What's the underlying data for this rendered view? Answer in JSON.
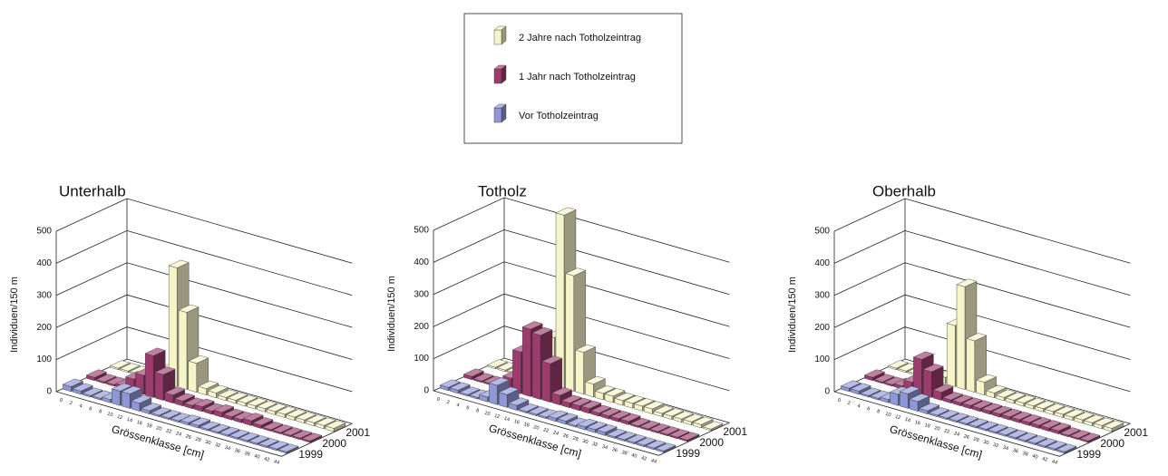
{
  "chart_data": [
    {
      "type": "bar3d",
      "title": "Unterhalb",
      "y_label": "Individuen/150 m",
      "x_label": "Grössenklasse [cm]",
      "categories": [
        0,
        2,
        4,
        6,
        8,
        10,
        12,
        14,
        16,
        18,
        20,
        22,
        24,
        26,
        28,
        30,
        32,
        34,
        36,
        38,
        40,
        42,
        44
      ],
      "ylim": [
        0,
        500
      ],
      "yticks": [
        0,
        100,
        200,
        300,
        400,
        500
      ],
      "series": [
        {
          "name": "Vor Totholzeintrag",
          "label": "1999",
          "color": "#8e97d8",
          "values": [
            15,
            10,
            5,
            5,
            10,
            45,
            45,
            25,
            10,
            5,
            5,
            5,
            8,
            8,
            5,
            5,
            5,
            5,
            5,
            5,
            5,
            5,
            5
          ]
        },
        {
          "name": "1 Jahr nach Totholzeintrag",
          "label": "2000",
          "color": "#9c3c6e",
          "values": [
            10,
            5,
            5,
            10,
            40,
            60,
            130,
            80,
            25,
            15,
            10,
            15,
            10,
            15,
            10,
            10,
            15,
            10,
            5,
            5,
            5,
            5,
            5
          ]
        },
        {
          "name": "2 Jahre nach Totholzeintrag",
          "label": "2001",
          "color": "#f6f4c9",
          "values": [
            5,
            5,
            5,
            5,
            5,
            40,
            370,
            240,
            90,
            20,
            15,
            10,
            10,
            10,
            10,
            10,
            10,
            10,
            10,
            10,
            10,
            10,
            10
          ]
        }
      ]
    },
    {
      "type": "bar3d",
      "title": "Totholz",
      "y_label": "Individuen/150 m",
      "x_label": "Grössenklasse [cm]",
      "categories": [
        0,
        2,
        4,
        6,
        8,
        10,
        12,
        14,
        16,
        18,
        20,
        22,
        24,
        26,
        28,
        30,
        32,
        34,
        36,
        38,
        40,
        42,
        44
      ],
      "ylim": [
        0,
        500
      ],
      "yticks": [
        0,
        100,
        200,
        300,
        400,
        500
      ],
      "series": [
        {
          "name": "Vor Totholzeintrag",
          "label": "1999",
          "color": "#8e97d8",
          "values": [
            10,
            10,
            5,
            5,
            15,
            60,
            40,
            15,
            5,
            5,
            5,
            10,
            10,
            5,
            10,
            10,
            10,
            5,
            5,
            5,
            5,
            5,
            5
          ]
        },
        {
          "name": "1 Jahr nach Totholzeintrag",
          "label": "2000",
          "color": "#9c3c6e",
          "values": [
            10,
            5,
            5,
            10,
            40,
            130,
            210,
            200,
            120,
            30,
            15,
            15,
            15,
            10,
            10,
            10,
            10,
            5,
            5,
            5,
            5,
            5,
            5
          ]
        },
        {
          "name": "2 Jahre nach Totholzeintrag",
          "label": "2001",
          "color": "#f6f4c9",
          "values": [
            5,
            5,
            5,
            5,
            10,
            40,
            150,
            540,
            360,
            130,
            40,
            20,
            20,
            15,
            15,
            15,
            15,
            10,
            10,
            10,
            10,
            10,
            5
          ]
        }
      ]
    },
    {
      "type": "bar3d",
      "title": "Oberhalb",
      "y_label": "Individuen/150 m",
      "x_label": "Grössenklasse [cm]",
      "categories": [
        0,
        2,
        4,
        6,
        8,
        10,
        12,
        14,
        16,
        18,
        20,
        22,
        24,
        26,
        28,
        30,
        32,
        34,
        36,
        38,
        40,
        42,
        44
      ],
      "ylim": [
        0,
        500
      ],
      "yticks": [
        0,
        100,
        200,
        300,
        400,
        500
      ],
      "series": [
        {
          "name": "Vor Totholzeintrag",
          "label": "1999",
          "color": "#8e97d8",
          "values": [
            10,
            10,
            5,
            5,
            10,
            35,
            45,
            30,
            10,
            5,
            5,
            5,
            5,
            5,
            5,
            5,
            5,
            5,
            5,
            5,
            5,
            5,
            5
          ]
        },
        {
          "name": "1 Jahr nach Totholzeintrag",
          "label": "2000",
          "color": "#9c3c6e",
          "values": [
            10,
            5,
            5,
            10,
            30,
            110,
            80,
            25,
            10,
            10,
            10,
            10,
            10,
            10,
            10,
            10,
            10,
            10,
            10,
            10,
            5,
            5,
            5
          ]
        },
        {
          "name": "2 Jahre nach Totholzeintrag",
          "label": "2001",
          "color": "#f6f4c9",
          "values": [
            5,
            5,
            5,
            5,
            5,
            20,
            190,
            320,
            160,
            40,
            15,
            10,
            10,
            10,
            10,
            10,
            10,
            10,
            10,
            10,
            10,
            10,
            10
          ]
        }
      ]
    }
  ]
}
